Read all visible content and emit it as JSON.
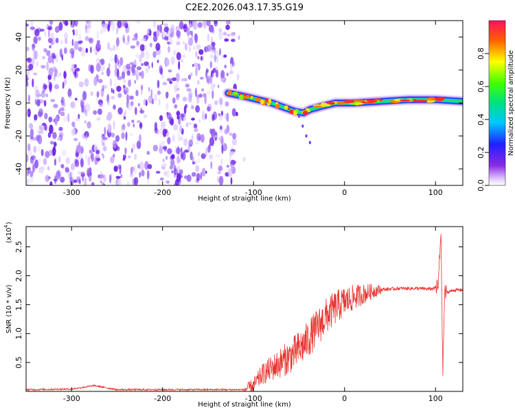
{
  "title": "C2E2.2026.043.17.35.G19",
  "colors": {
    "noise": "#7a3cf0",
    "noise_light": "#c9a8ff",
    "snr_line": "#e8322e",
    "axis": "#000000"
  },
  "chart_data": [
    {
      "type": "heatmap",
      "name": "spectrogram",
      "xlabel": "Height of straight line (km)",
      "ylabel": "Frequency (Hz)",
      "xlim": [
        -350,
        130
      ],
      "ylim": [
        -50,
        50
      ],
      "xticks": [
        -300,
        -200,
        -100,
        0,
        100
      ],
      "yticks": [
        -40,
        -20,
        0,
        20,
        40
      ],
      "noise_region_x": [
        -350,
        -120
      ],
      "signal_track": [
        {
          "x": -128,
          "y": 6
        },
        {
          "x": -110,
          "y": 4
        },
        {
          "x": -95,
          "y": 2
        },
        {
          "x": -80,
          "y": 0
        },
        {
          "x": -65,
          "y": -3
        },
        {
          "x": -55,
          "y": -5
        },
        {
          "x": -45,
          "y": -6
        },
        {
          "x": -38,
          "y": -4
        },
        {
          "x": -25,
          "y": -2
        },
        {
          "x": -10,
          "y": 0
        },
        {
          "x": 10,
          "y": 0
        },
        {
          "x": 40,
          "y": 1
        },
        {
          "x": 70,
          "y": 2
        },
        {
          "x": 100,
          "y": 2
        },
        {
          "x": 130,
          "y": 1
        }
      ],
      "colorbar": {
        "label": "Normalized spectral amplitude",
        "ticks": [
          "0.0",
          "0.2",
          "0.4",
          "0.6",
          "0.8"
        ],
        "range": [
          0,
          1
        ]
      }
    },
    {
      "type": "line",
      "name": "snr",
      "xlabel": "Height of straight line (km)",
      "ylabel": "SNR (10 * v/v)",
      "y_multiplier": "(x10",
      "y_multiplier_exp": "4",
      "xlim": [
        -350,
        130
      ],
      "ylim": [
        0,
        2.85
      ],
      "xticks": [
        -300,
        -200,
        -100,
        0,
        100
      ],
      "yticks": [
        "0.5",
        "1.0",
        "1.5",
        "2.0",
        "2.5"
      ],
      "series": [
        {
          "name": "SNR",
          "points": [
            {
              "x": -350,
              "y": 0.03
            },
            {
              "x": -300,
              "y": 0.04
            },
            {
              "x": -275,
              "y": 0.1
            },
            {
              "x": -250,
              "y": 0.03
            },
            {
              "x": -200,
              "y": 0.03
            },
            {
              "x": -150,
              "y": 0.03
            },
            {
              "x": -110,
              "y": 0.03
            },
            {
              "x": -100,
              "y": 0.1
            },
            {
              "x": -90,
              "y": 0.3
            },
            {
              "x": -75,
              "y": 0.45
            },
            {
              "x": -60,
              "y": 0.6
            },
            {
              "x": -45,
              "y": 0.8
            },
            {
              "x": -30,
              "y": 1.1
            },
            {
              "x": -20,
              "y": 1.3
            },
            {
              "x": -10,
              "y": 1.45
            },
            {
              "x": 0,
              "y": 1.55
            },
            {
              "x": 10,
              "y": 1.62
            },
            {
              "x": 20,
              "y": 1.68
            },
            {
              "x": 30,
              "y": 1.73
            },
            {
              "x": 40,
              "y": 1.76
            },
            {
              "x": 60,
              "y": 1.78
            },
            {
              "x": 80,
              "y": 1.78
            },
            {
              "x": 95,
              "y": 1.77
            },
            {
              "x": 103,
              "y": 1.8
            },
            {
              "x": 106,
              "y": 2.8
            },
            {
              "x": 108,
              "y": 0.3
            },
            {
              "x": 110,
              "y": 1.7
            },
            {
              "x": 120,
              "y": 1.75
            },
            {
              "x": 130,
              "y": 1.76
            }
          ]
        }
      ]
    }
  ]
}
